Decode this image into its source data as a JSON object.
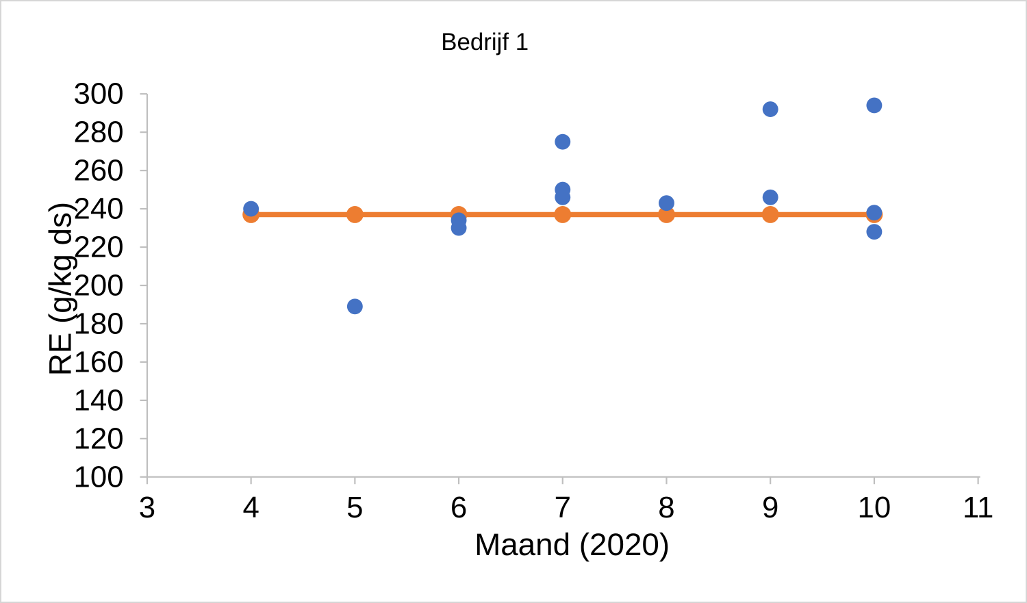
{
  "frame": {
    "background": "#FFFFFF",
    "border_color": "#D6D6D6"
  },
  "chart_data": {
    "type": "scatter",
    "title": "Bedrijf 1",
    "xlabel": "Maand (2020)",
    "ylabel": "RE (g/kg ds)",
    "xlim": [
      3,
      11
    ],
    "ylim": [
      100,
      300
    ],
    "x_ticks": [
      3,
      4,
      5,
      6,
      7,
      8,
      9,
      10,
      11
    ],
    "y_ticks": [
      100,
      120,
      140,
      160,
      180,
      200,
      220,
      240,
      260,
      280,
      300
    ],
    "grid": false,
    "legend": "none",
    "axis_color": "#BFBFBF",
    "text_color": "#000000",
    "series": [
      {
        "name": "orange-reference-line",
        "type": "line",
        "color": "#ED7D31",
        "marker": "circle",
        "points": [
          [
            4,
            237
          ],
          [
            5,
            237
          ],
          [
            6,
            237
          ],
          [
            7,
            237
          ],
          [
            8,
            237
          ],
          [
            9,
            237
          ],
          [
            10,
            237
          ]
        ]
      },
      {
        "name": "blue-measurements",
        "type": "scatter",
        "color": "#4472C4",
        "marker": "circle",
        "points": [
          [
            4,
            240
          ],
          [
            5,
            189
          ],
          [
            6,
            234
          ],
          [
            6,
            230
          ],
          [
            7,
            275
          ],
          [
            7,
            250
          ],
          [
            7,
            246
          ],
          [
            8,
            243
          ],
          [
            9,
            292
          ],
          [
            9,
            246
          ],
          [
            10,
            294
          ],
          [
            10,
            238
          ],
          [
            10,
            228
          ]
        ]
      }
    ]
  }
}
